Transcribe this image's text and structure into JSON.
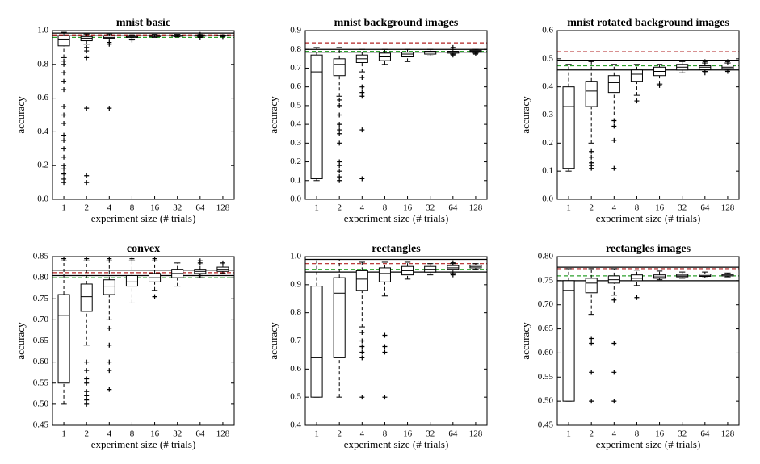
{
  "chart_data": [
    {
      "type": "box",
      "title": "mnist basic",
      "xlabel": "experiment size (# trials)",
      "ylabel": "accuracy",
      "categories": [
        "1",
        "2",
        "4",
        "8",
        "16",
        "32",
        "64",
        "128"
      ],
      "ylim": [
        0,
        1
      ],
      "yticks": [
        {
          "value": 0,
          "label": "0.0"
        },
        0.2,
        0.4,
        0.6,
        0.8,
        {
          "value": 1,
          "label": "1.0"
        }
      ],
      "reference_lines": [
        {
          "value": 0.985,
          "color": "#000000",
          "style": "solid"
        },
        {
          "value": 0.97,
          "color": "#000000",
          "style": "solid"
        },
        {
          "value": 0.975,
          "color": "#b22222",
          "style": "dashed"
        },
        {
          "value": 0.96,
          "color": "#2ca02c",
          "style": "dashed"
        }
      ],
      "boxes": [
        {
          "whislo": 0.84,
          "q1": 0.91,
          "med": 0.95,
          "q3": 0.97,
          "whishi": 0.99,
          "fliers": [
            0.82,
            0.8,
            0.75,
            0.7,
            0.65,
            0.55,
            0.5,
            0.45,
            0.38,
            0.35,
            0.3,
            0.25,
            0.2,
            0.18,
            0.15,
            0.12,
            0.1
          ]
        },
        {
          "whislo": 0.92,
          "q1": 0.94,
          "med": 0.955,
          "q3": 0.965,
          "whishi": 0.98,
          "fliers": [
            0.9,
            0.88,
            0.84,
            0.54,
            0.14,
            0.1
          ]
        },
        {
          "whislo": 0.945,
          "q1": 0.955,
          "med": 0.96,
          "q3": 0.97,
          "whishi": 0.98,
          "fliers": [
            0.93,
            0.92,
            0.54
          ]
        },
        {
          "whislo": 0.95,
          "q1": 0.96,
          "med": 0.965,
          "q3": 0.97,
          "whishi": 0.975,
          "fliers": [
            0.945
          ]
        },
        {
          "whislo": 0.96,
          "q1": 0.965,
          "med": 0.968,
          "q3": 0.972,
          "whishi": 0.978,
          "fliers": []
        },
        {
          "whislo": 0.963,
          "q1": 0.967,
          "med": 0.97,
          "q3": 0.973,
          "whishi": 0.978,
          "fliers": []
        },
        {
          "whislo": 0.965,
          "q1": 0.968,
          "med": 0.97,
          "q3": 0.972,
          "whishi": 0.975,
          "fliers": [
            0.96,
            0.977
          ]
        },
        {
          "whislo": 0.967,
          "q1": 0.969,
          "med": 0.971,
          "q3": 0.972,
          "whishi": 0.974,
          "fliers": [
            0.965
          ]
        }
      ]
    },
    {
      "type": "box",
      "title": "mnist background images",
      "xlabel": "experiment size (# trials)",
      "ylabel": "accuracy",
      "categories": [
        "1",
        "2",
        "4",
        "8",
        "16",
        "32",
        "64",
        "128"
      ],
      "ylim": [
        0,
        0.9
      ],
      "yticks": [
        {
          "value": 0,
          "label": "0.0"
        },
        0.1,
        0.2,
        0.3,
        0.4,
        0.5,
        0.6,
        0.7,
        0.8,
        0.9
      ],
      "reference_lines": [
        {
          "value": 0.8,
          "color": "#000000",
          "style": "solid"
        },
        {
          "value": 0.785,
          "color": "#000000",
          "style": "solid"
        },
        {
          "value": 0.835,
          "color": "#b22222",
          "style": "dashed"
        },
        {
          "value": 0.79,
          "color": "#2ca02c",
          "style": "dashed"
        }
      ],
      "boxes": [
        {
          "whislo": 0.1,
          "q1": 0.11,
          "med": 0.68,
          "q3": 0.77,
          "whishi": 0.81,
          "fliers": []
        },
        {
          "whislo": 0.55,
          "q1": 0.66,
          "med": 0.72,
          "q3": 0.75,
          "whishi": 0.81,
          "fliers": [
            0.53,
            0.5,
            0.45,
            0.4,
            0.37,
            0.35,
            0.3,
            0.2,
            0.18,
            0.15,
            0.12,
            0.1
          ]
        },
        {
          "whislo": 0.68,
          "q1": 0.73,
          "med": 0.75,
          "q3": 0.77,
          "whishi": 0.8,
          "fliers": [
            0.65,
            0.6,
            0.57,
            0.55,
            0.37,
            0.11
          ]
        },
        {
          "whislo": 0.72,
          "q1": 0.74,
          "med": 0.76,
          "q3": 0.78,
          "whishi": 0.8,
          "fliers": []
        },
        {
          "whislo": 0.735,
          "q1": 0.76,
          "med": 0.775,
          "q3": 0.785,
          "whishi": 0.8,
          "fliers": []
        },
        {
          "whislo": 0.765,
          "q1": 0.775,
          "med": 0.785,
          "q3": 0.79,
          "whishi": 0.8,
          "fliers": []
        },
        {
          "whislo": 0.775,
          "q1": 0.78,
          "med": 0.785,
          "q3": 0.79,
          "whishi": 0.8,
          "fliers": [
            0.77,
            0.81
          ]
        },
        {
          "whislo": 0.78,
          "q1": 0.785,
          "med": 0.79,
          "q3": 0.795,
          "whishi": 0.8,
          "fliers": [
            0.775
          ]
        }
      ]
    },
    {
      "type": "box",
      "title": "mnist rotated background images",
      "xlabel": "experiment size (# trials)",
      "ylabel": "accuracy",
      "categories": [
        "1",
        "2",
        "4",
        "8",
        "16",
        "32",
        "64",
        "128"
      ],
      "ylim": [
        0,
        0.6
      ],
      "yticks": [
        {
          "value": 0,
          "label": "0.0"
        },
        0.1,
        0.2,
        0.3,
        0.4,
        0.5,
        0.6
      ],
      "reference_lines": [
        {
          "value": 0.495,
          "color": "#000000",
          "style": "solid"
        },
        {
          "value": 0.46,
          "color": "#000000",
          "style": "solid"
        },
        {
          "value": 0.525,
          "color": "#b22222",
          "style": "dashed"
        },
        {
          "value": 0.475,
          "color": "#2ca02c",
          "style": "dashed"
        }
      ],
      "boxes": [
        {
          "whislo": 0.1,
          "q1": 0.11,
          "med": 0.33,
          "q3": 0.4,
          "whishi": 0.48,
          "fliers": []
        },
        {
          "whislo": 0.2,
          "q1": 0.33,
          "med": 0.385,
          "q3": 0.42,
          "whishi": 0.49,
          "fliers": [
            0.17,
            0.15,
            0.13,
            0.12,
            0.11
          ]
        },
        {
          "whislo": 0.3,
          "q1": 0.38,
          "med": 0.415,
          "q3": 0.44,
          "whishi": 0.48,
          "fliers": [
            0.28,
            0.26,
            0.21,
            0.11
          ]
        },
        {
          "whislo": 0.37,
          "q1": 0.42,
          "med": 0.445,
          "q3": 0.46,
          "whishi": 0.48,
          "fliers": [
            0.35
          ]
        },
        {
          "whislo": 0.41,
          "q1": 0.44,
          "med": 0.455,
          "q3": 0.47,
          "whishi": 0.48,
          "fliers": [
            0.405
          ]
        },
        {
          "whislo": 0.45,
          "q1": 0.46,
          "med": 0.47,
          "q3": 0.48,
          "whishi": 0.49,
          "fliers": []
        },
        {
          "whislo": 0.455,
          "q1": 0.462,
          "med": 0.47,
          "q3": 0.475,
          "whishi": 0.485,
          "fliers": [
            0.45,
            0.49
          ]
        },
        {
          "whislo": 0.46,
          "q1": 0.465,
          "med": 0.47,
          "q3": 0.478,
          "whishi": 0.485,
          "fliers": [
            0.455,
            0.49
          ]
        }
      ]
    },
    {
      "type": "box",
      "title": "convex",
      "xlabel": "experiment size (# trials)",
      "ylabel": "accuracy",
      "categories": [
        "1",
        "2",
        "4",
        "8",
        "16",
        "32",
        "64",
        "128"
      ],
      "ylim": [
        0.45,
        0.85
      ],
      "yticks": [
        0.45,
        {
          "value": 0.5,
          "label": "0.50"
        },
        0.55,
        {
          "value": 0.6,
          "label": "0.60"
        },
        0.65,
        {
          "value": 0.7,
          "label": "0.70"
        },
        0.75,
        {
          "value": 0.8,
          "label": "0.80"
        },
        0.85
      ],
      "reference_lines": [
        {
          "value": 0.818,
          "color": "#000000",
          "style": "solid"
        },
        {
          "value": 0.805,
          "color": "#000000",
          "style": "solid"
        },
        {
          "value": 0.812,
          "color": "#b22222",
          "style": "dashed"
        },
        {
          "value": 0.8,
          "color": "#2ca02c",
          "style": "dashed"
        }
      ],
      "boxes": [
        {
          "whislo": 0.5,
          "q1": 0.55,
          "med": 0.71,
          "q3": 0.76,
          "whishi": 0.84,
          "fliers": [
            0.845
          ]
        },
        {
          "whislo": 0.64,
          "q1": 0.72,
          "med": 0.755,
          "q3": 0.785,
          "whishi": 0.84,
          "fliers": [
            0.6,
            0.58,
            0.56,
            0.55,
            0.53,
            0.52,
            0.51,
            0.5,
            0.845
          ]
        },
        {
          "whislo": 0.7,
          "q1": 0.76,
          "med": 0.78,
          "q3": 0.795,
          "whishi": 0.84,
          "fliers": [
            0.68,
            0.64,
            0.6,
            0.58,
            0.535,
            0.845
          ]
        },
        {
          "whislo": 0.74,
          "q1": 0.78,
          "med": 0.79,
          "q3": 0.805,
          "whishi": 0.84,
          "fliers": [
            0.845
          ]
        },
        {
          "whislo": 0.77,
          "q1": 0.79,
          "med": 0.8,
          "q3": 0.81,
          "whishi": 0.84,
          "fliers": [
            0.755,
            0.845
          ]
        },
        {
          "whislo": 0.78,
          "q1": 0.8,
          "med": 0.81,
          "q3": 0.82,
          "whishi": 0.835,
          "fliers": []
        },
        {
          "whislo": 0.8,
          "q1": 0.81,
          "med": 0.815,
          "q3": 0.82,
          "whishi": 0.83,
          "fliers": [
            0.805,
            0.835,
            0.84
          ]
        },
        {
          "whislo": 0.81,
          "q1": 0.815,
          "med": 0.82,
          "q3": 0.825,
          "whishi": 0.83,
          "fliers": [
            0.835
          ]
        }
      ]
    },
    {
      "type": "box",
      "title": "rectangles",
      "xlabel": "experiment size (# trials)",
      "ylabel": "accuracy",
      "categories": [
        "1",
        "2",
        "4",
        "8",
        "16",
        "32",
        "64",
        "128"
      ],
      "ylim": [
        0.4,
        1
      ],
      "yticks": [
        0.4,
        0.5,
        0.6,
        0.7,
        0.8,
        0.9,
        {
          "value": 1,
          "label": "1.0"
        }
      ],
      "reference_lines": [
        {
          "value": 0.99,
          "color": "#000000",
          "style": "solid"
        },
        {
          "value": 0.945,
          "color": "#000000",
          "style": "solid"
        },
        {
          "value": 0.975,
          "color": "#b22222",
          "style": "dashed"
        },
        {
          "value": 0.955,
          "color": "#2ca02c",
          "style": "dashed"
        }
      ],
      "boxes": [
        {
          "whislo": 0.5,
          "q1": 0.5,
          "med": 0.64,
          "q3": 0.895,
          "whishi": 0.99,
          "fliers": []
        },
        {
          "whislo": 0.5,
          "q1": 0.64,
          "med": 0.87,
          "q3": 0.925,
          "whishi": 0.99,
          "fliers": []
        },
        {
          "whislo": 0.75,
          "q1": 0.88,
          "med": 0.92,
          "q3": 0.95,
          "whishi": 0.98,
          "fliers": [
            0.73,
            0.7,
            0.68,
            0.66,
            0.64,
            0.5
          ]
        },
        {
          "whislo": 0.86,
          "q1": 0.91,
          "med": 0.94,
          "q3": 0.96,
          "whishi": 0.98,
          "fliers": [
            0.72,
            0.68,
            0.66,
            0.5
          ]
        },
        {
          "whislo": 0.92,
          "q1": 0.935,
          "med": 0.95,
          "q3": 0.965,
          "whishi": 0.98,
          "fliers": []
        },
        {
          "whislo": 0.935,
          "q1": 0.945,
          "med": 0.955,
          "q3": 0.965,
          "whishi": 0.975,
          "fliers": []
        },
        {
          "whislo": 0.94,
          "q1": 0.955,
          "med": 0.96,
          "q3": 0.968,
          "whishi": 0.975,
          "fliers": [
            0.935,
            0.978
          ]
        },
        {
          "whislo": 0.955,
          "q1": 0.96,
          "med": 0.965,
          "q3": 0.97,
          "whishi": 0.975,
          "fliers": []
        }
      ]
    },
    {
      "type": "box",
      "title": "rectangles images",
      "xlabel": "experiment size (# trials)",
      "ylabel": "accuracy",
      "categories": [
        "1",
        "2",
        "4",
        "8",
        "16",
        "32",
        "64",
        "128"
      ],
      "ylim": [
        0.45,
        0.8
      ],
      "yticks": [
        0.45,
        {
          "value": 0.5,
          "label": "0.50"
        },
        0.55,
        {
          "value": 0.6,
          "label": "0.60"
        },
        0.65,
        {
          "value": 0.7,
          "label": "0.70"
        },
        0.75,
        {
          "value": 0.8,
          "label": "0.80"
        }
      ],
      "reference_lines": [
        {
          "value": 0.778,
          "color": "#000000",
          "style": "solid"
        },
        {
          "value": 0.75,
          "color": "#000000",
          "style": "solid"
        },
        {
          "value": 0.775,
          "color": "#b22222",
          "style": "dashed"
        },
        {
          "value": 0.76,
          "color": "#2ca02c",
          "style": "dashed"
        }
      ],
      "boxes": [
        {
          "whislo": 0.5,
          "q1": 0.5,
          "med": 0.73,
          "q3": 0.75,
          "whishi": 0.775,
          "fliers": []
        },
        {
          "whislo": 0.68,
          "q1": 0.725,
          "med": 0.745,
          "q3": 0.755,
          "whishi": 0.775,
          "fliers": [
            0.63,
            0.62,
            0.56,
            0.5
          ]
        },
        {
          "whislo": 0.72,
          "q1": 0.745,
          "med": 0.752,
          "q3": 0.76,
          "whishi": 0.775,
          "fliers": [
            0.71,
            0.62,
            0.56,
            0.5
          ]
        },
        {
          "whislo": 0.74,
          "q1": 0.75,
          "med": 0.755,
          "q3": 0.762,
          "whishi": 0.772,
          "fliers": [
            0.715
          ]
        },
        {
          "whislo": 0.752,
          "q1": 0.755,
          "med": 0.758,
          "q3": 0.762,
          "whishi": 0.77,
          "fliers": []
        },
        {
          "whislo": 0.755,
          "q1": 0.758,
          "med": 0.76,
          "q3": 0.763,
          "whishi": 0.768,
          "fliers": []
        },
        {
          "whislo": 0.756,
          "q1": 0.759,
          "med": 0.761,
          "q3": 0.764,
          "whishi": 0.768,
          "fliers": []
        },
        {
          "whislo": 0.758,
          "q1": 0.76,
          "med": 0.762,
          "q3": 0.764,
          "whishi": 0.766,
          "fliers": []
        }
      ]
    }
  ]
}
